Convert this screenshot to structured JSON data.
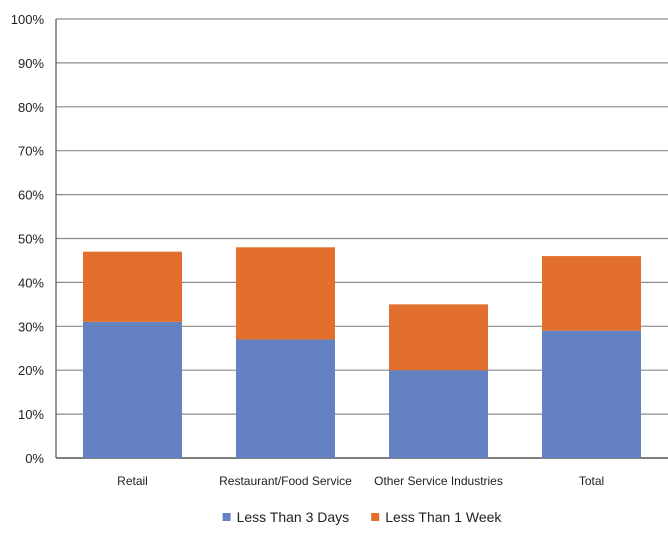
{
  "chart_data": {
    "type": "bar",
    "stacked": true,
    "categories": [
      "Retail",
      "Restaurant/Food Service",
      "Other Service Industries",
      "Total"
    ],
    "series": [
      {
        "name": "Less Than 3 Days",
        "values": [
          31,
          27,
          20,
          29
        ],
        "color": "#6482C1"
      },
      {
        "name": "Less Than 1 Week",
        "values": [
          16,
          21,
          15,
          17
        ],
        "color": "#E26F2D"
      }
    ],
    "ylim": [
      0,
      100
    ],
    "yticks": [
      "0%",
      "10%",
      "20%",
      "30%",
      "40%",
      "50%",
      "60%",
      "70%",
      "80%",
      "90%",
      "100%"
    ],
    "grid": true,
    "legend_position": "bottom"
  }
}
